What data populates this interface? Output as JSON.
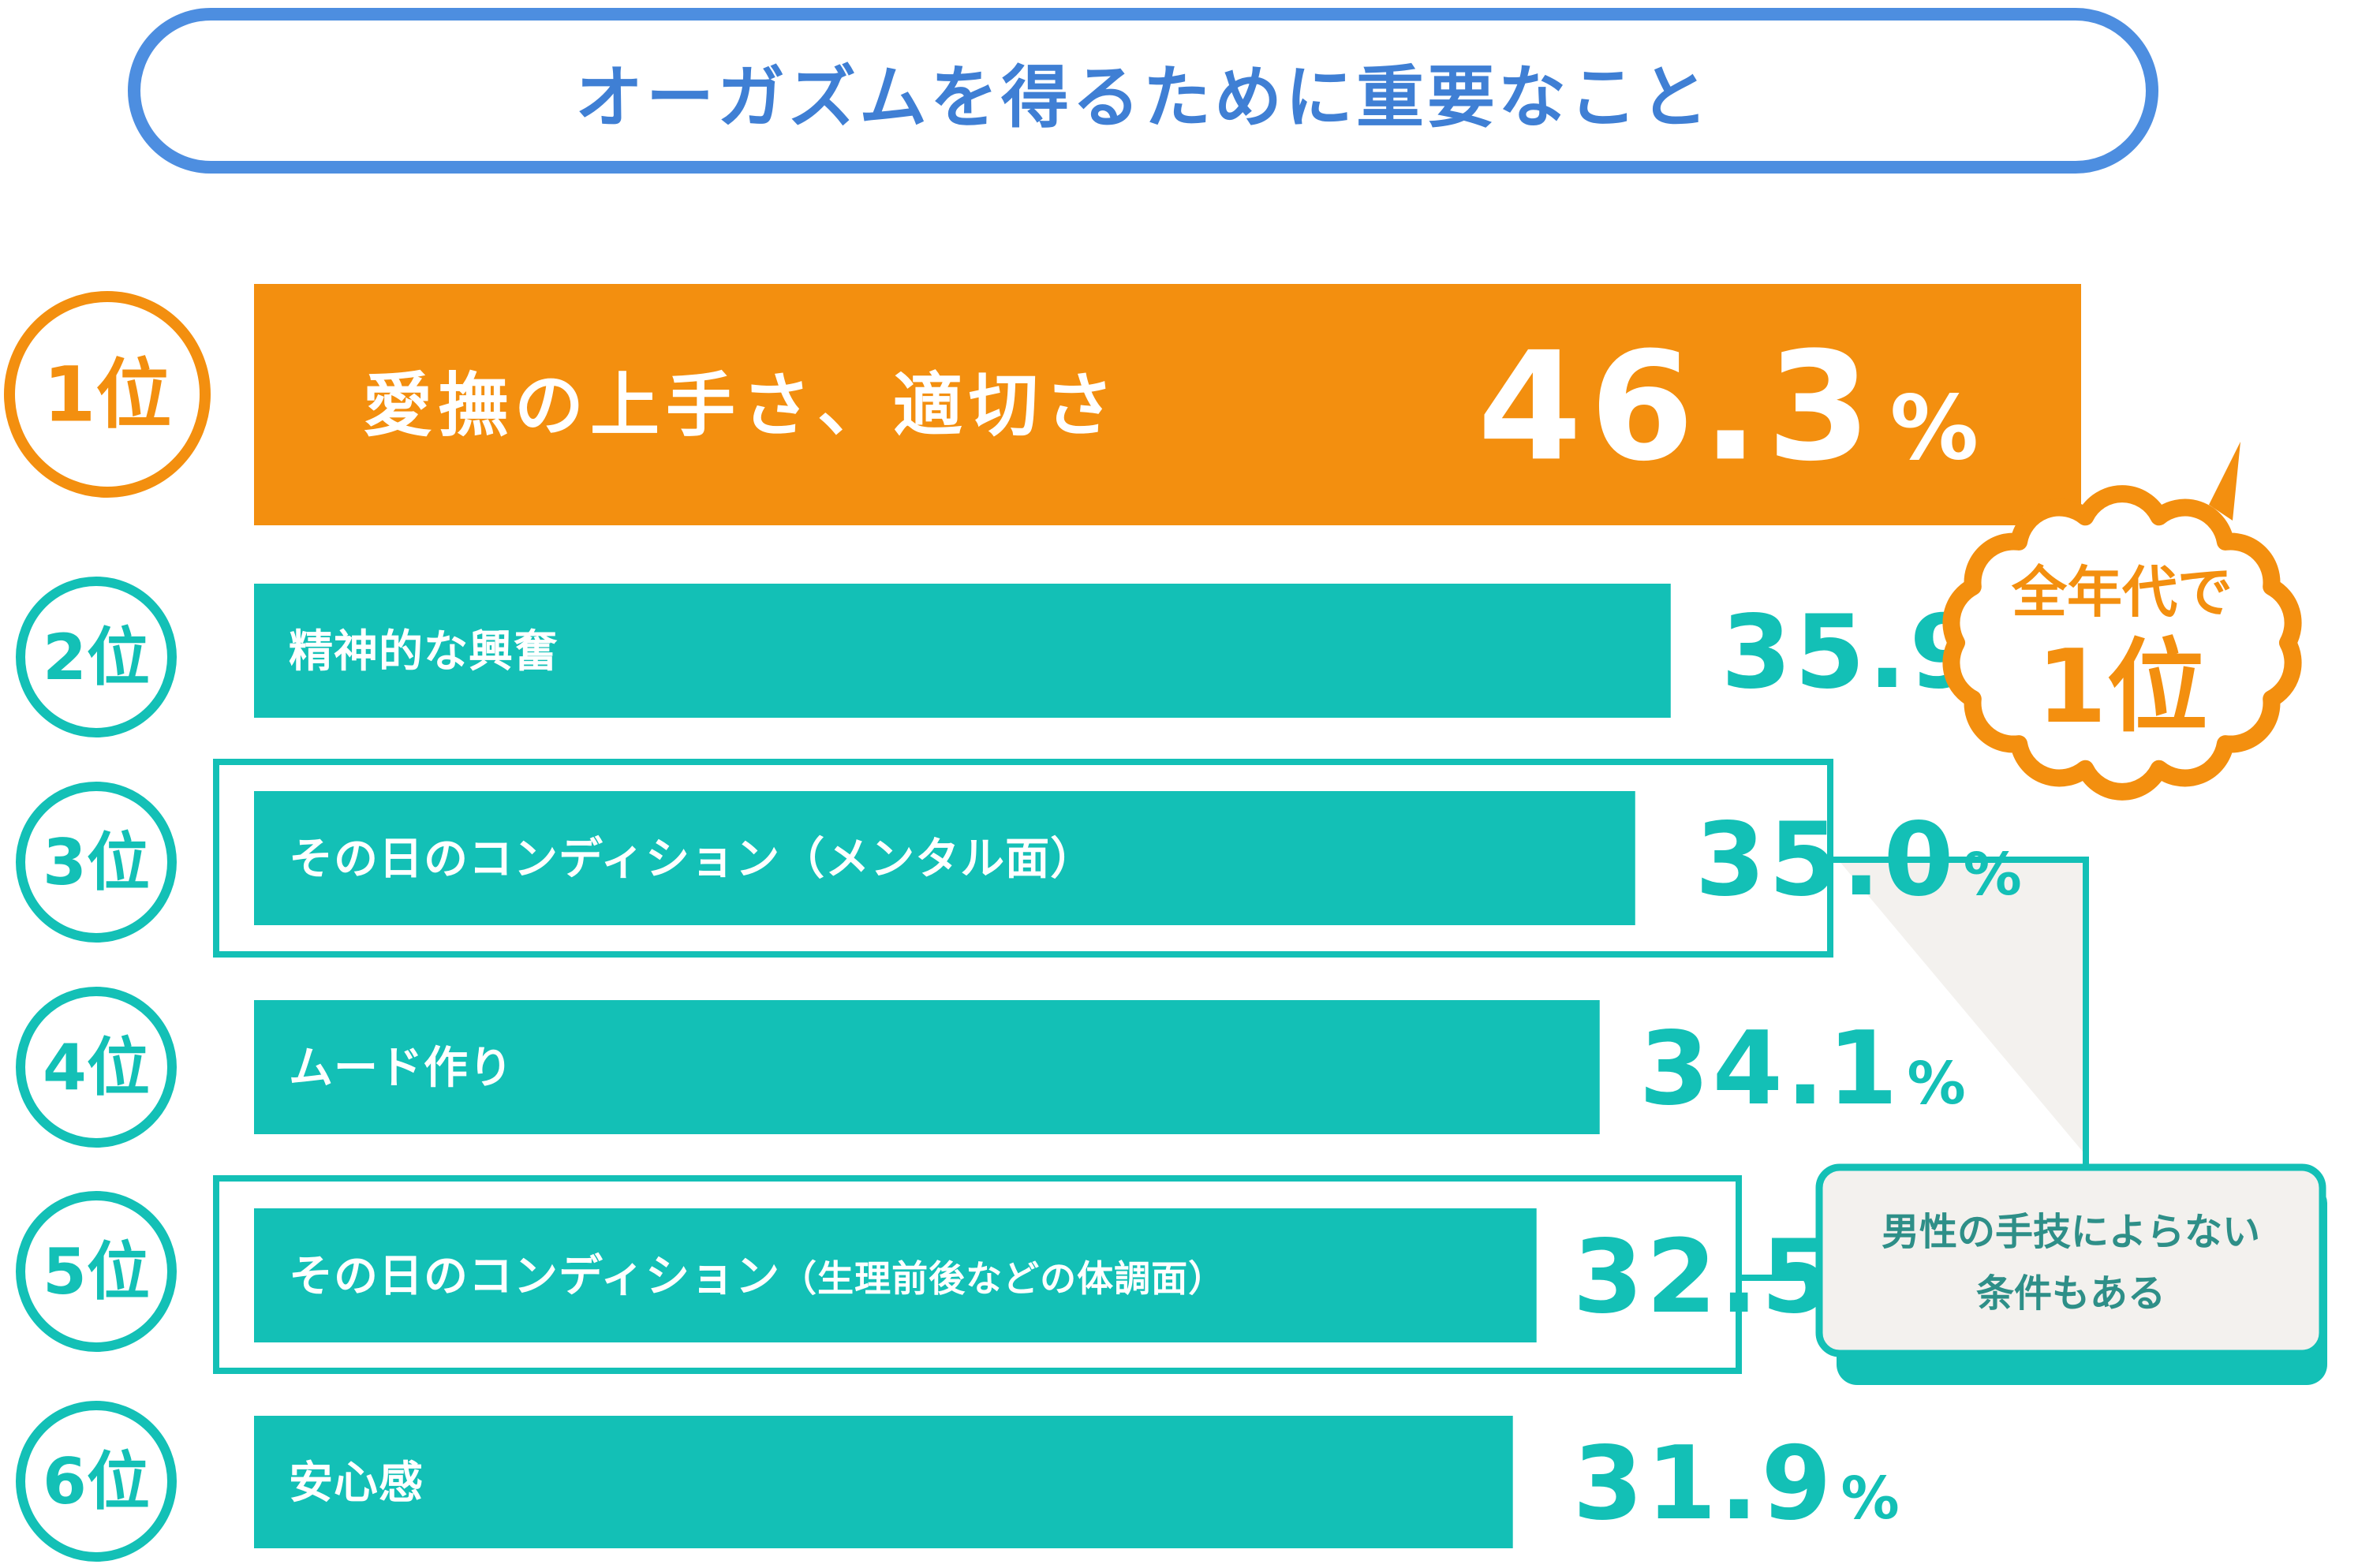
{
  "title": "オーガズムを得るために重要なこと",
  "colors": {
    "accent_orange": "#f38f0f",
    "teal": "#13c0b6",
    "title_blue": "#4d8ee0"
  },
  "chart_data": {
    "type": "bar",
    "title": "オーガズムを得るために重要なこと",
    "unit": "%",
    "xlim": [
      0,
      46.3
    ],
    "items": [
      {
        "rank": "1位",
        "label": "愛撫の上手さ、適切さ",
        "value": 46.3,
        "value_text": "46.3"
      },
      {
        "rank": "2位",
        "label": "精神的な興奮",
        "value": 35.9,
        "value_text": "35.9"
      },
      {
        "rank": "3位",
        "label": "その日のコンディション（メンタル面）",
        "value": 35.0,
        "value_text": "35.0"
      },
      {
        "rank": "4位",
        "label": "ムード作り",
        "value": 34.1,
        "value_text": "34.1"
      },
      {
        "rank": "5位",
        "label": "その日のコンディション",
        "label_suffix": "（生理前後などの体調面）",
        "value": 32.5,
        "value_text": "32.5"
      },
      {
        "rank": "6位",
        "label": "安心感",
        "value": 31.9,
        "value_text": "31.9"
      }
    ],
    "annotations": {
      "burst_line1": "全年代で",
      "burst_line2": "1位",
      "callout_line1": "男性の手技によらない",
      "callout_line2": "条件もある"
    }
  }
}
